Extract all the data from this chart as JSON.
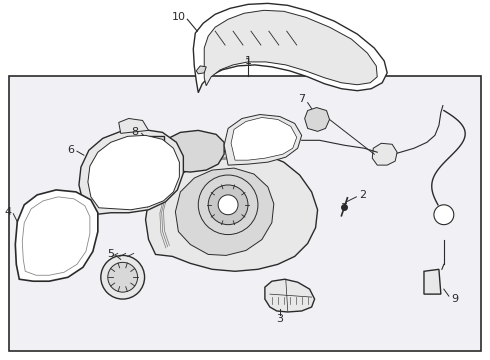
{
  "bg_color": "#ffffff",
  "box_bg": "#f0f0f5",
  "line_color": "#2a2a2a",
  "fig_width": 4.9,
  "fig_height": 3.6,
  "dpi": 100
}
